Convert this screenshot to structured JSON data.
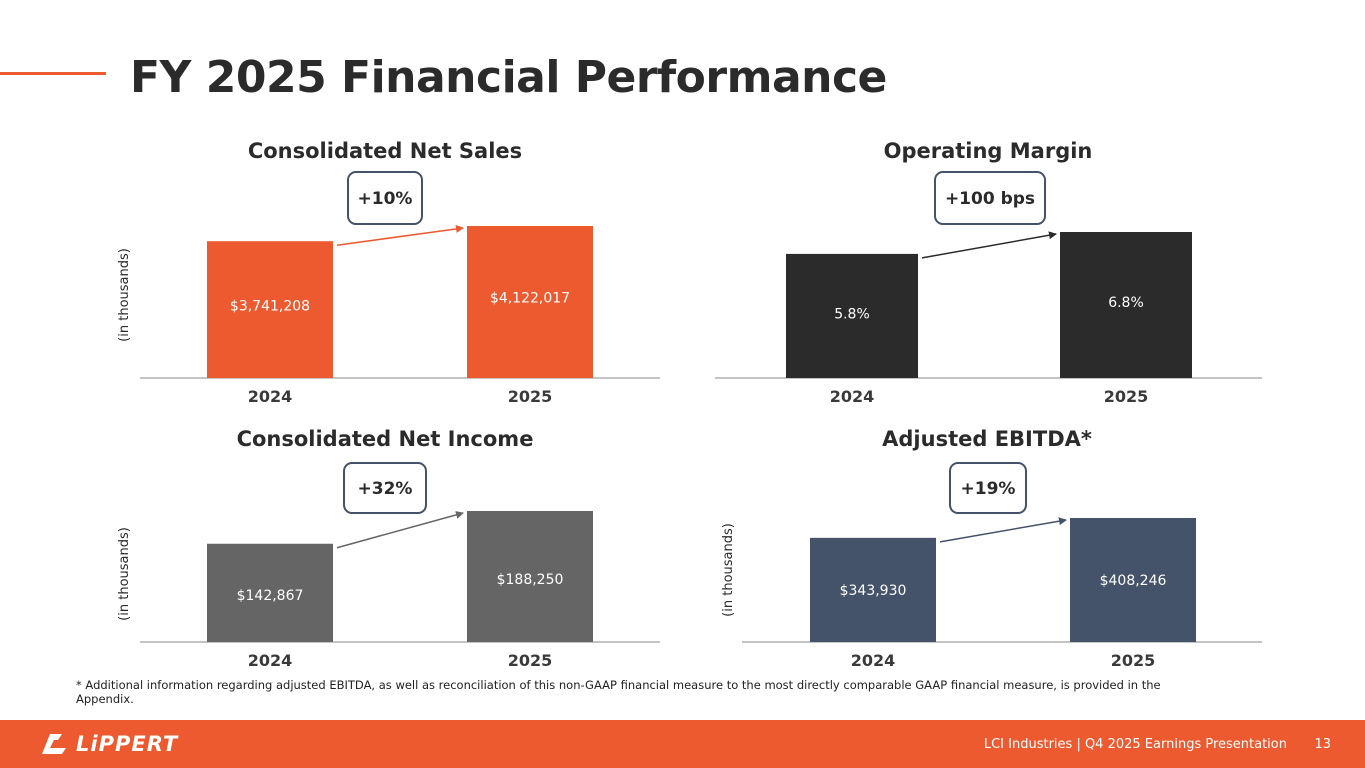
{
  "title": "FY 2025 Financial Performance",
  "colors": {
    "accent": "#ee5a2f",
    "dark": "#2b2b2b",
    "gray": "#656565",
    "navy": "#44536a",
    "axis": "#888888",
    "badge_border": "#44536a"
  },
  "chart_data": [
    {
      "type": "bar",
      "title": "Consolidated Net Sales",
      "ylabel": "(in thousands)",
      "categories": [
        "2024",
        "2025"
      ],
      "values": [
        3741208,
        4122017
      ],
      "labels": [
        "$3,741,208",
        "$4,122,017"
      ],
      "change": "+10%",
      "bar_color": "#ee5a2f",
      "arrow_color": "#ee5a2f"
    },
    {
      "type": "bar",
      "title": "Operating Margin",
      "ylabel": "",
      "categories": [
        "2024",
        "2025"
      ],
      "values": [
        5.8,
        6.8
      ],
      "labels": [
        "5.8%",
        "6.8%"
      ],
      "change": "+100 bps",
      "bar_color": "#2b2b2b",
      "arrow_color": "#2b2b2b"
    },
    {
      "type": "bar",
      "title": "Consolidated Net Income",
      "ylabel": "(in thousands)",
      "categories": [
        "2024",
        "2025"
      ],
      "values": [
        142867,
        188250
      ],
      "labels": [
        "$142,867",
        "$188,250"
      ],
      "change": "+32%",
      "bar_color": "#656565",
      "arrow_color": "#656565"
    },
    {
      "type": "bar",
      "title": "Adjusted EBITDA*",
      "ylabel": "(in thousands)",
      "categories": [
        "2024",
        "2025"
      ],
      "values": [
        343930,
        408246
      ],
      "labels": [
        "$343,930",
        "$408,246"
      ],
      "change": "+19%",
      "bar_color": "#44536a",
      "arrow_color": "#44536a"
    }
  ],
  "footnote": "* Additional information regarding adjusted EBITDA, as well as reconciliation of this non-GAAP financial measure to the most directly comparable GAAP financial measure, is provided in the Appendix.",
  "footer": {
    "logo_text": "LiPPERT",
    "presentation": "LCI Industries | Q4 2025 Earnings Presentation",
    "page_number": "13"
  }
}
